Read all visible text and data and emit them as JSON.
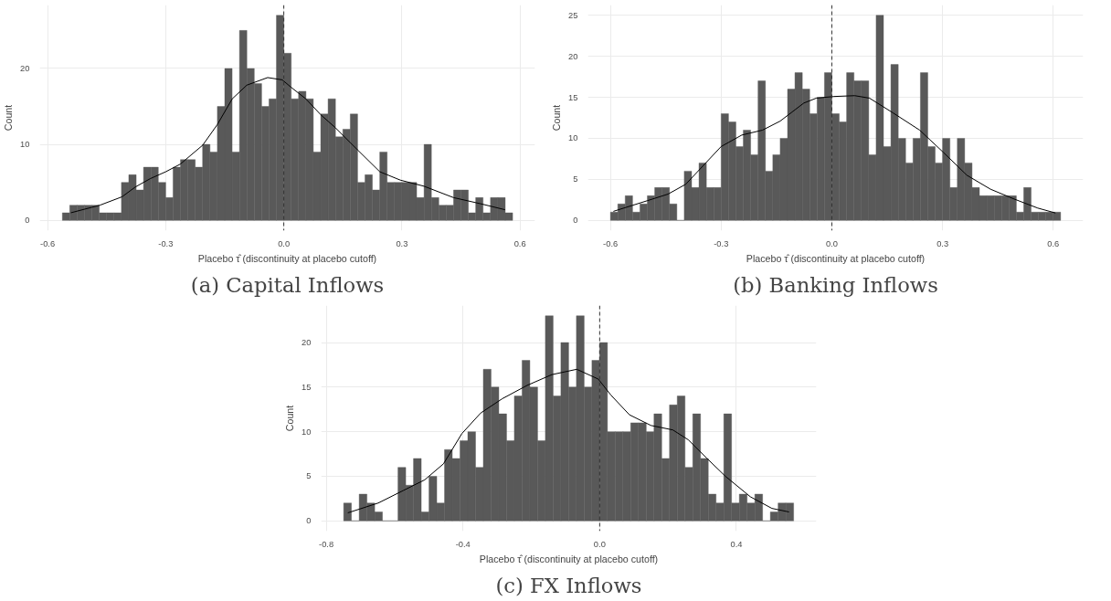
{
  "chart_data": [
    {
      "type": "histogram",
      "title": "(a) Capital Inflows",
      "xlabel": "Placebo τ̂ (discontinuity at placebo cutoff)",
      "ylabel": "Count",
      "color": "#595959",
      "bins": [
        -0.5625,
        -0.5438,
        -0.525,
        -0.5062,
        -0.4875,
        -0.4688,
        -0.45,
        -0.4313,
        -0.4125,
        -0.3938,
        -0.375,
        -0.3563,
        -0.3375,
        -0.3188,
        -0.3,
        -0.2813,
        -0.2625,
        -0.2438,
        -0.225,
        -0.2063,
        -0.1875,
        -0.1688,
        -0.15,
        -0.1313,
        -0.1125,
        -0.0938,
        -0.075,
        -0.0563,
        -0.0375,
        -0.0188,
        0,
        0.0188,
        0.0375,
        0.0563,
        0.075,
        0.0938,
        0.1125,
        0.1313,
        0.15,
        0.1688,
        0.1875,
        0.2063,
        0.225,
        0.2438,
        0.2625,
        0.2813,
        0.3,
        0.3188,
        0.3375,
        0.3563,
        0.375,
        0.3938,
        0.4125,
        0.4313,
        0.45,
        0.4688,
        0.4875,
        0.5062,
        0.525,
        0.5438,
        0.5625,
        0.5813
      ],
      "values": [
        1,
        2,
        2,
        2,
        2,
        1,
        1,
        1,
        5,
        6,
        4,
        7,
        7,
        5,
        3,
        7,
        8,
        8,
        7,
        10,
        9,
        15,
        20,
        9,
        25,
        20,
        18,
        15,
        16,
        27,
        22,
        16,
        17,
        16,
        9,
        14,
        16,
        11,
        12,
        14,
        5,
        6,
        4,
        9,
        5,
        5,
        5,
        5,
        3,
        10,
        3,
        2,
        2,
        4,
        4,
        1,
        3,
        1,
        3,
        3,
        1
      ],
      "series": [
        {
          "type": "line",
          "color": "#000000",
          "x": [
            -0.541,
            -0.467,
            -0.411,
            -0.377,
            -0.339,
            -0.3,
            -0.263,
            -0.206,
            -0.169,
            -0.131,
            -0.094,
            -0.041,
            -0.004,
            0.019,
            0.056,
            0.094,
            0.131,
            0.187,
            0.244,
            0.296,
            0.356,
            0.431,
            0.499,
            0.562
          ],
          "values": [
            1.0,
            2.0,
            3.1,
            4.4,
            5.5,
            6.4,
            7.4,
            9.9,
            12.6,
            16.0,
            17.8,
            18.8,
            18.5,
            17.5,
            16.0,
            13.9,
            12.2,
            9.3,
            6.4,
            5.3,
            4.5,
            3.0,
            2.2,
            1.4
          ]
        }
      ],
      "ref_lines": [
        {
          "axis": "x",
          "value": 0,
          "line_style": "dashed",
          "color": "#333333"
        }
      ],
      "xlim": [
        -0.62,
        0.638
      ],
      "ylim": [
        -1.35,
        28.35
      ],
      "xticks": [
        {
          "value": -0.6,
          "label": "-0.6"
        },
        {
          "value": -0.3,
          "label": "-0.3"
        },
        {
          "value": 0,
          "label": "0.0"
        },
        {
          "value": 0.3,
          "label": "0.3"
        },
        {
          "value": 0.6,
          "label": "0.6"
        }
      ],
      "yticks": [
        0,
        10,
        20
      ],
      "grid": true
    },
    {
      "type": "histogram",
      "title": "(b) Banking Inflows",
      "xlabel": "Placebo τ̂ (discontinuity at placebo cutoff)",
      "ylabel": "Count",
      "color": "#595959",
      "bins": [
        -0.6,
        -0.58,
        -0.56,
        -0.54,
        -0.52,
        -0.5,
        -0.48,
        -0.46,
        -0.44,
        -0.42,
        -0.4,
        -0.38,
        -0.36,
        -0.34,
        -0.32,
        -0.3,
        -0.28,
        -0.26,
        -0.24,
        -0.22,
        -0.2,
        -0.18,
        -0.16,
        -0.14,
        -0.12,
        -0.1,
        -0.08,
        -0.06,
        -0.04,
        -0.02,
        0,
        0.02,
        0.04,
        0.06,
        0.08,
        0.1,
        0.12,
        0.14,
        0.16,
        0.18,
        0.2,
        0.22,
        0.24,
        0.26,
        0.28,
        0.3,
        0.32,
        0.34,
        0.36,
        0.38,
        0.4,
        0.42,
        0.44,
        0.46,
        0.48,
        0.5,
        0.52,
        0.54,
        0.56,
        0.58,
        0.6,
        0.62
      ],
      "values": [
        1,
        2,
        3,
        1,
        2,
        3,
        4,
        4,
        2,
        0,
        6,
        4,
        7,
        4,
        4,
        13,
        12,
        9,
        11,
        8,
        17,
        6,
        8,
        10,
        16,
        18,
        16,
        13,
        15,
        18,
        13,
        12,
        18,
        17,
        17,
        8,
        25,
        9,
        19,
        10,
        7,
        10,
        18,
        9,
        7,
        10,
        4,
        10,
        7,
        4,
        3,
        3,
        3,
        3,
        3,
        1,
        4,
        1,
        1,
        1,
        1
      ],
      "series": [
        {
          "type": "line",
          "color": "#000000",
          "x": [
            -0.592,
            -0.5,
            -0.444,
            -0.396,
            -0.348,
            -0.3,
            -0.244,
            -0.188,
            -0.14,
            -0.076,
            -0.042,
            0.006,
            0.062,
            0.102,
            0.166,
            0.238,
            0.302,
            0.366,
            0.43,
            0.494,
            0.558,
            0.606
          ],
          "values": [
            1.1,
            2.4,
            3.2,
            4.4,
            6.7,
            9.0,
            10.4,
            11.0,
            12.1,
            14.3,
            14.9,
            15.1,
            15.2,
            14.9,
            13.1,
            11.0,
            8.3,
            5.5,
            3.8,
            2.6,
            1.5,
            0.9
          ]
        }
      ],
      "ref_lines": [
        {
          "axis": "x",
          "value": 0,
          "line_style": "dashed",
          "color": "#333333"
        }
      ],
      "xlim": [
        -0.661,
        0.681
      ],
      "ylim": [
        -1.25,
        26.25
      ],
      "xticks": [
        {
          "value": -0.6,
          "label": "-0.6"
        },
        {
          "value": -0.3,
          "label": "-0.3"
        },
        {
          "value": 0,
          "label": "0.0"
        },
        {
          "value": 0.3,
          "label": "0.3"
        },
        {
          "value": 0.6,
          "label": "0.6"
        }
      ],
      "yticks": [
        0,
        5,
        10,
        15,
        20,
        25
      ],
      "grid": true
    },
    {
      "type": "histogram",
      "title": "(c) FX Inflows",
      "xlabel": "Placebo τ̂ (discontinuity at placebo cutoff)",
      "ylabel": "Count",
      "color": "#595959",
      "bins": [
        -0.7491,
        -0.7264,
        -0.7037,
        -0.681,
        -0.6583,
        -0.6356,
        -0.6129,
        -0.5902,
        -0.5675,
        -0.5448,
        -0.5221,
        -0.4994,
        -0.4767,
        -0.454,
        -0.4313,
        -0.4086,
        -0.3859,
        -0.3632,
        -0.3405,
        -0.3178,
        -0.2951,
        -0.2724,
        -0.2497,
        -0.227,
        -0.2043,
        -0.1816,
        -0.1589,
        -0.1362,
        -0.1135,
        -0.0908,
        -0.0681,
        -0.0454,
        -0.0227,
        0,
        0.0227,
        0.0454,
        0.0681,
        0.0908,
        0.1135,
        0.1362,
        0.1589,
        0.1816,
        0.2043,
        0.227,
        0.2497,
        0.2724,
        0.2951,
        0.3178,
        0.3405,
        0.3632,
        0.3859,
        0.4086,
        0.4313,
        0.454,
        0.4767,
        0.4994,
        0.5221,
        0.5448,
        0.5675
      ],
      "values": [
        2,
        0,
        3,
        2,
        1,
        0,
        0,
        6,
        4,
        7,
        1,
        5,
        2,
        8,
        7,
        9,
        10,
        6,
        17,
        15,
        12,
        9,
        14,
        18,
        15,
        9,
        23,
        14,
        20,
        15,
        23,
        15,
        18,
        20,
        10,
        10,
        10,
        11,
        11,
        10,
        12,
        7,
        13,
        14,
        6,
        12,
        7,
        3,
        2,
        12,
        2,
        3,
        2,
        3,
        0,
        1,
        2,
        2
      ],
      "series": [
        {
          "type": "line",
          "color": "#000000",
          "x": [
            -0.737,
            -0.648,
            -0.575,
            -0.512,
            -0.457,
            -0.403,
            -0.348,
            -0.285,
            -0.212,
            -0.14,
            -0.067,
            -0.004,
            0.033,
            0.087,
            0.15,
            0.214,
            0.259,
            0.314,
            0.368,
            0.441,
            0.504,
            0.554
          ],
          "values": [
            0.9,
            2.0,
            3.4,
            4.6,
            6.4,
            9.8,
            12.1,
            13.7,
            15.2,
            16.4,
            17.0,
            15.9,
            14.1,
            11.9,
            10.7,
            10.2,
            9.1,
            7.0,
            5.0,
            2.7,
            1.4,
            1.0
          ]
        }
      ],
      "ref_lines": [
        {
          "axis": "x",
          "value": 0,
          "line_style": "dashed",
          "color": "#333333"
        }
      ],
      "xlim": [
        -0.815,
        0.634
      ],
      "ylim": [
        -1.15,
        24.15
      ],
      "xticks": [
        {
          "value": -0.8,
          "label": "-0.8"
        },
        {
          "value": -0.4,
          "label": "-0.4"
        },
        {
          "value": 0,
          "label": "0.0"
        },
        {
          "value": 0.4,
          "label": "0.4"
        }
      ],
      "yticks": [
        0,
        5,
        10,
        15,
        20
      ],
      "grid": true
    }
  ]
}
